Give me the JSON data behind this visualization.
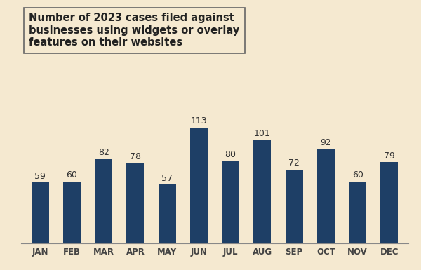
{
  "categories": [
    "JAN",
    "FEB",
    "MAR",
    "APR",
    "MAY",
    "JUN",
    "JUL",
    "AUG",
    "SEP",
    "OCT",
    "NOV",
    "DEC"
  ],
  "values": [
    59,
    60,
    82,
    78,
    57,
    113,
    80,
    101,
    72,
    92,
    60,
    79
  ],
  "bar_color": "#1e3f66",
  "background_color": "#f5e9d0",
  "title_line1": "Number of 2023 cases filed against",
  "title_line2": "businesses using widgets or overlay",
  "title_line3": "features on their websites",
  "title_fontsize": 10.5,
  "tick_fontsize": 8.5,
  "value_label_fontsize": 9,
  "ylim": [
    0,
    130
  ],
  "bar_width": 0.55
}
